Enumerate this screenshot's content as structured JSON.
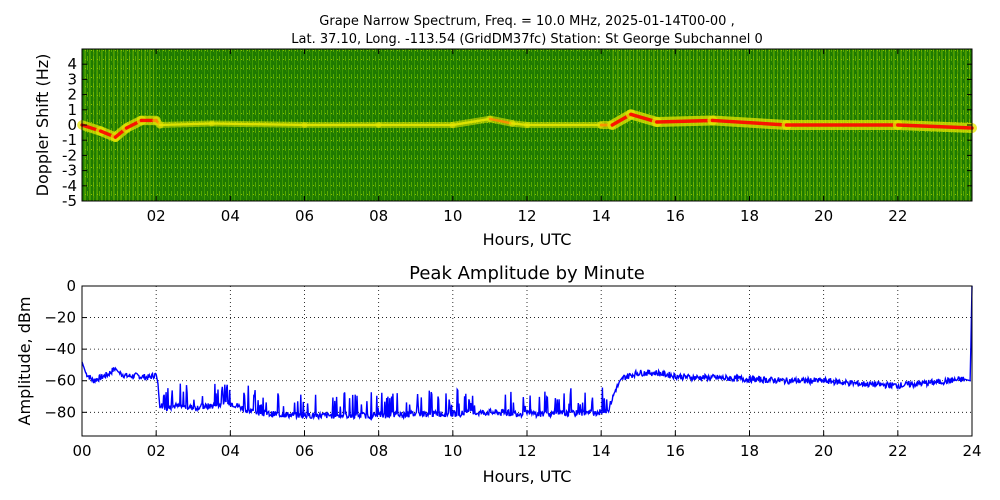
{
  "figure": {
    "background": "#ffffff"
  },
  "chart_data": [
    {
      "type": "heatmap",
      "title_line1": "Grape Narrow Spectrum, Freq. = 10.0 MHz, 2025-01-14T00-00 ,",
      "title_line2": "Lat.  37.10, Long. -113.54 (GridDM37fc) Station: St George Subchannel 0",
      "xlabel": "Hours, UTC",
      "ylabel": "Doppler Shift (Hz)",
      "xlim": [
        0,
        24
      ],
      "ylim": [
        -5,
        5
      ],
      "x_ticks": [
        2,
        4,
        6,
        8,
        10,
        12,
        14,
        16,
        18,
        20,
        22
      ],
      "x_tick_labels": [
        "02",
        "04",
        "06",
        "08",
        "10",
        "12",
        "14",
        "16",
        "18",
        "20",
        "22"
      ],
      "y_ticks": [
        4,
        3,
        2,
        1,
        0,
        -1,
        -2,
        -3,
        -4,
        -5
      ],
      "y_tick_labels": [
        "4",
        "3",
        "2",
        "1",
        "0",
        "-1",
        "-2",
        "-3",
        "-4",
        "-5"
      ],
      "colormap": [
        "#006400",
        "#2e8b00",
        "#7fb800",
        "#e6e600",
        "#ff8c00",
        "#ff0000"
      ],
      "ridge": [
        {
          "hour": 0.0,
          "doppler_hz": 0.0,
          "strength": 0.95
        },
        {
          "hour": 0.5,
          "doppler_hz": -0.4,
          "strength": 0.95
        },
        {
          "hour": 0.9,
          "doppler_hz": -0.8,
          "strength": 0.95
        },
        {
          "hour": 1.2,
          "doppler_hz": -0.2,
          "strength": 0.95
        },
        {
          "hour": 1.6,
          "doppler_hz": 0.3,
          "strength": 0.95
        },
        {
          "hour": 2.0,
          "doppler_hz": 0.3,
          "strength": 0.9
        },
        {
          "hour": 2.1,
          "doppler_hz": 0.0,
          "strength": 0.45
        },
        {
          "hour": 3.5,
          "doppler_hz": 0.1,
          "strength": 0.55
        },
        {
          "hour": 6.0,
          "doppler_hz": 0.0,
          "strength": 0.45
        },
        {
          "hour": 8.0,
          "doppler_hz": 0.0,
          "strength": 0.5
        },
        {
          "hour": 10.0,
          "doppler_hz": 0.0,
          "strength": 0.5
        },
        {
          "hour": 11.0,
          "doppler_hz": 0.4,
          "strength": 0.6
        },
        {
          "hour": 11.6,
          "doppler_hz": 0.1,
          "strength": 0.6
        },
        {
          "hour": 12.0,
          "doppler_hz": 0.0,
          "strength": 0.5
        },
        {
          "hour": 14.0,
          "doppler_hz": 0.0,
          "strength": 0.5
        },
        {
          "hour": 14.3,
          "doppler_hz": 0.0,
          "strength": 1.0
        },
        {
          "hour": 14.8,
          "doppler_hz": 0.7,
          "strength": 1.0
        },
        {
          "hour": 15.5,
          "doppler_hz": 0.2,
          "strength": 1.0
        },
        {
          "hour": 17.0,
          "doppler_hz": 0.3,
          "strength": 1.0
        },
        {
          "hour": 19.0,
          "doppler_hz": 0.0,
          "strength": 1.0
        },
        {
          "hour": 22.0,
          "doppler_hz": 0.0,
          "strength": 1.0
        },
        {
          "hour": 24.0,
          "doppler_hz": -0.2,
          "strength": 1.0
        }
      ]
    },
    {
      "type": "line",
      "title": "Peak Amplitude by Minute",
      "xlabel": "Hours, UTC",
      "ylabel": "Amplitude, dBm",
      "xlim": [
        0,
        24
      ],
      "ylim": [
        -95,
        0
      ],
      "x_ticks": [
        0,
        2,
        4,
        6,
        8,
        10,
        12,
        14,
        16,
        18,
        20,
        22,
        24
      ],
      "x_tick_labels": [
        "00",
        "02",
        "04",
        "06",
        "08",
        "10",
        "12",
        "14",
        "16",
        "18",
        "20",
        "22",
        "24"
      ],
      "y_ticks": [
        0,
        -20,
        -40,
        -60,
        -80
      ],
      "y_tick_labels": [
        "0",
        "−20",
        "−40",
        "−60",
        "−80"
      ],
      "grid": true,
      "line_color": "#0000ff",
      "series": [
        {
          "x": [
            0.0,
            0.1,
            0.3,
            0.5,
            0.7,
            0.9,
            1.0,
            1.2,
            1.5,
            1.8,
            2.0,
            2.05,
            2.1,
            2.5,
            3.0,
            3.5,
            4.0,
            4.5,
            5.0,
            6.0,
            7.0,
            8.0,
            9.0,
            10.0,
            11.0,
            12.0,
            13.0,
            14.0,
            14.2,
            14.4,
            14.6,
            15.0,
            15.5,
            16.0,
            16.5,
            17.0,
            18.0,
            19.0,
            20.0,
            21.0,
            22.0,
            23.0,
            23.8,
            23.95,
            24.0
          ],
          "y": [
            -48,
            -55,
            -60,
            -58,
            -56,
            -52,
            -55,
            -57,
            -57,
            -58,
            -56,
            -62,
            -78,
            -76,
            -77,
            -76,
            -74,
            -79,
            -81,
            -82,
            -82,
            -82,
            -81,
            -81,
            -80,
            -81,
            -81,
            -80,
            -78,
            -65,
            -58,
            -55,
            -55,
            -57,
            -58,
            -58,
            -59,
            -60,
            -60,
            -62,
            -63,
            -61,
            -59,
            -60,
            0
          ]
        }
      ]
    }
  ]
}
